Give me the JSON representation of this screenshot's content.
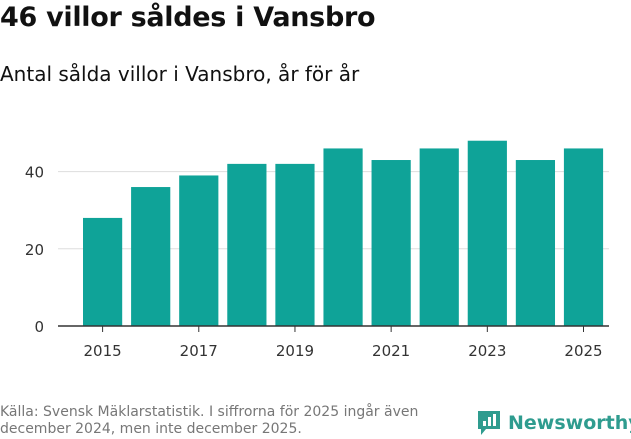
{
  "header": {
    "title": "46 villor såldes i Vansbro",
    "subtitle": "Antal sålda villor i Vansbro, år för år"
  },
  "footer": {
    "source": "Källa: Svensk Mäklarstatistik. I siffrorna för 2025 ingår även december 2024, men inte december 2025.",
    "brand": "Newsworthy"
  },
  "colors": {
    "bar": "#0fa398",
    "brand": "#2f9c8f",
    "grid": "#dddddd",
    "axis": "#333333"
  },
  "chart_data": {
    "type": "bar",
    "categories": [
      "2015",
      "2016",
      "2017",
      "2018",
      "2019",
      "2020",
      "2021",
      "2022",
      "2023",
      "2024",
      "2025"
    ],
    "values": [
      28,
      36,
      39,
      42,
      42,
      46,
      43,
      46,
      48,
      43,
      46
    ],
    "x_tick_labels": [
      "2015",
      "2017",
      "2019",
      "2021",
      "2023",
      "2025"
    ],
    "y_ticks": [
      0,
      20,
      40
    ],
    "ylim": [
      0,
      50
    ],
    "grid": true,
    "legend": "none"
  }
}
